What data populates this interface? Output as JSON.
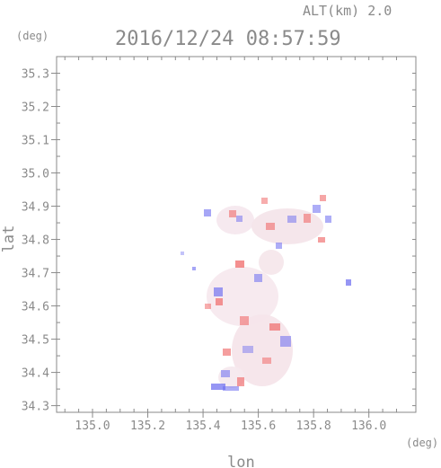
{
  "chart_data": {
    "type": "heatmap",
    "title": "2016/12/24 08:57:59",
    "subtitle": "ALT(km) 2.0",
    "xlabel": "lon",
    "ylabel": "lat",
    "x_unit": "(deg)",
    "y_unit": "(deg)",
    "xlim": [
      134.87,
      136.17
    ],
    "ylim": [
      34.28,
      35.35
    ],
    "x_ticks": [
      "135.0",
      "135.2",
      "135.4",
      "135.6",
      "135.8",
      "136.0"
    ],
    "y_ticks": [
      "34.3",
      "34.4",
      "34.5",
      "34.6",
      "34.7",
      "34.8",
      "34.9",
      "35.0",
      "35.1",
      "35.2",
      "35.3"
    ],
    "grid": false,
    "colors": {
      "positive": "#f06a6a",
      "negative": "#6a6af0",
      "neutral": "#f3e3e8",
      "axis": "#8a8a8a"
    }
  }
}
